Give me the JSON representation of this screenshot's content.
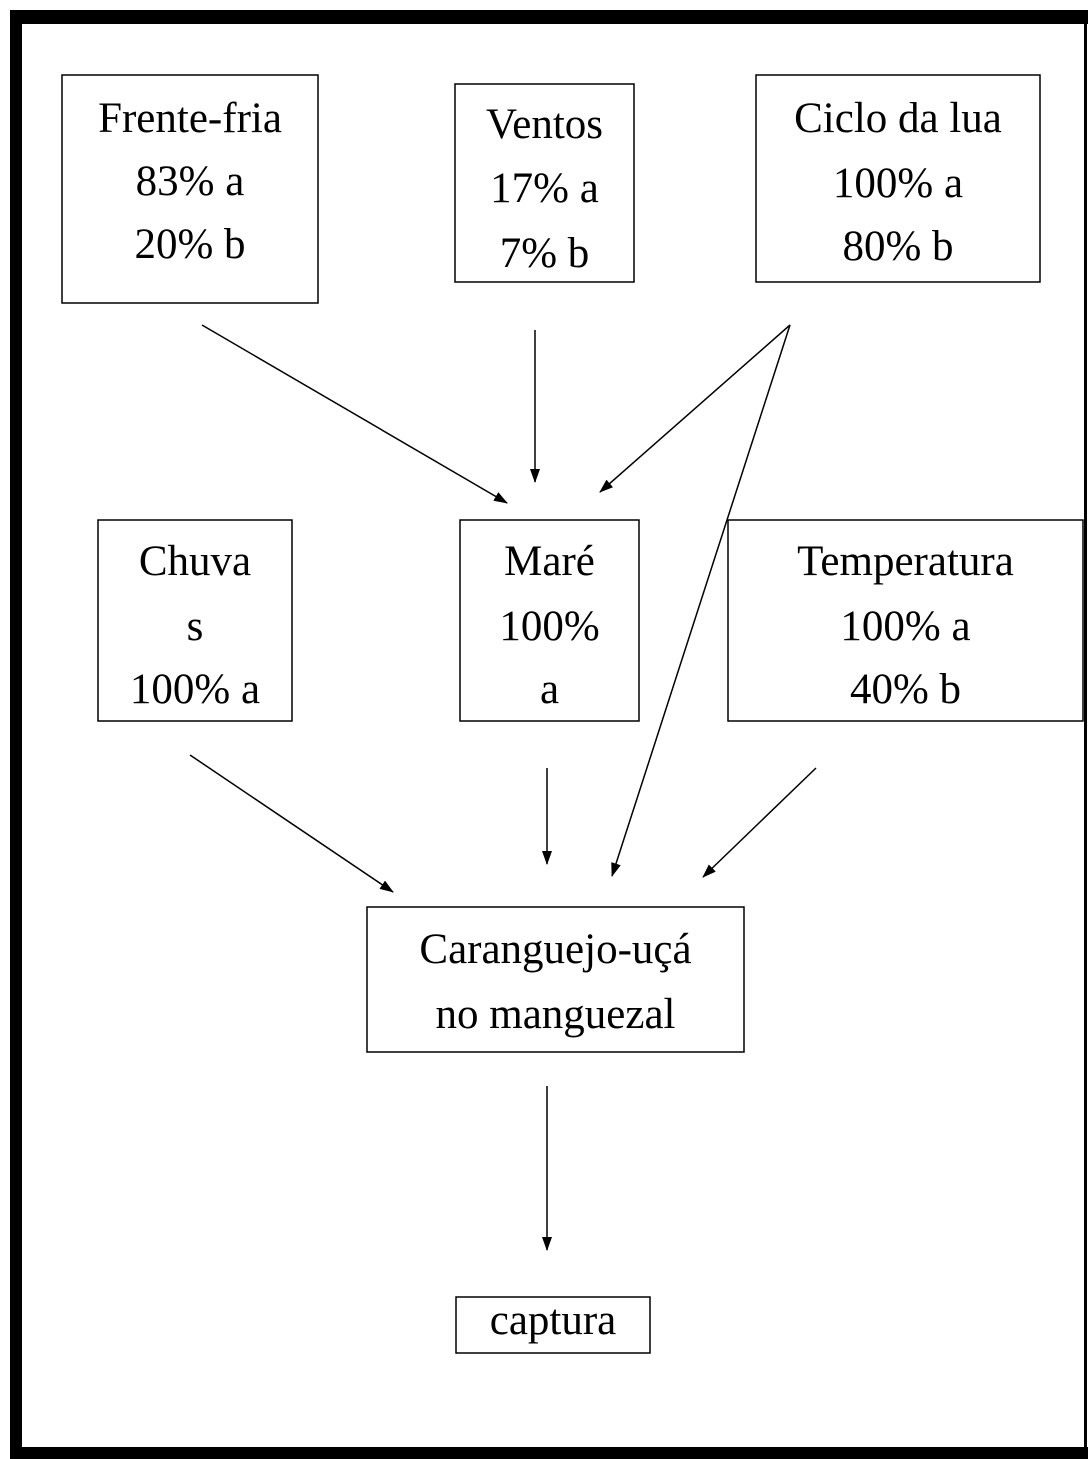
{
  "nodes": [
    {
      "lines": [
        "Frente-fria",
        "83% a",
        "20% b"
      ]
    },
    {
      "lines": [
        "Ventos",
        "17% a",
        "7% b"
      ]
    },
    {
      "lines": [
        "Ciclo da lua",
        "100% a",
        "80% b"
      ]
    },
    {
      "lines": [
        "Chuva",
        "s",
        "100% a"
      ]
    },
    {
      "lines": [
        "Maré",
        "100%",
        "a"
      ]
    },
    {
      "lines": [
        "Temperatura",
        "100% a",
        "40% b"
      ]
    },
    {
      "lines": [
        "Caranguejo-uçá",
        "no manguezal"
      ]
    },
    {
      "lines": [
        "captura"
      ]
    }
  ]
}
